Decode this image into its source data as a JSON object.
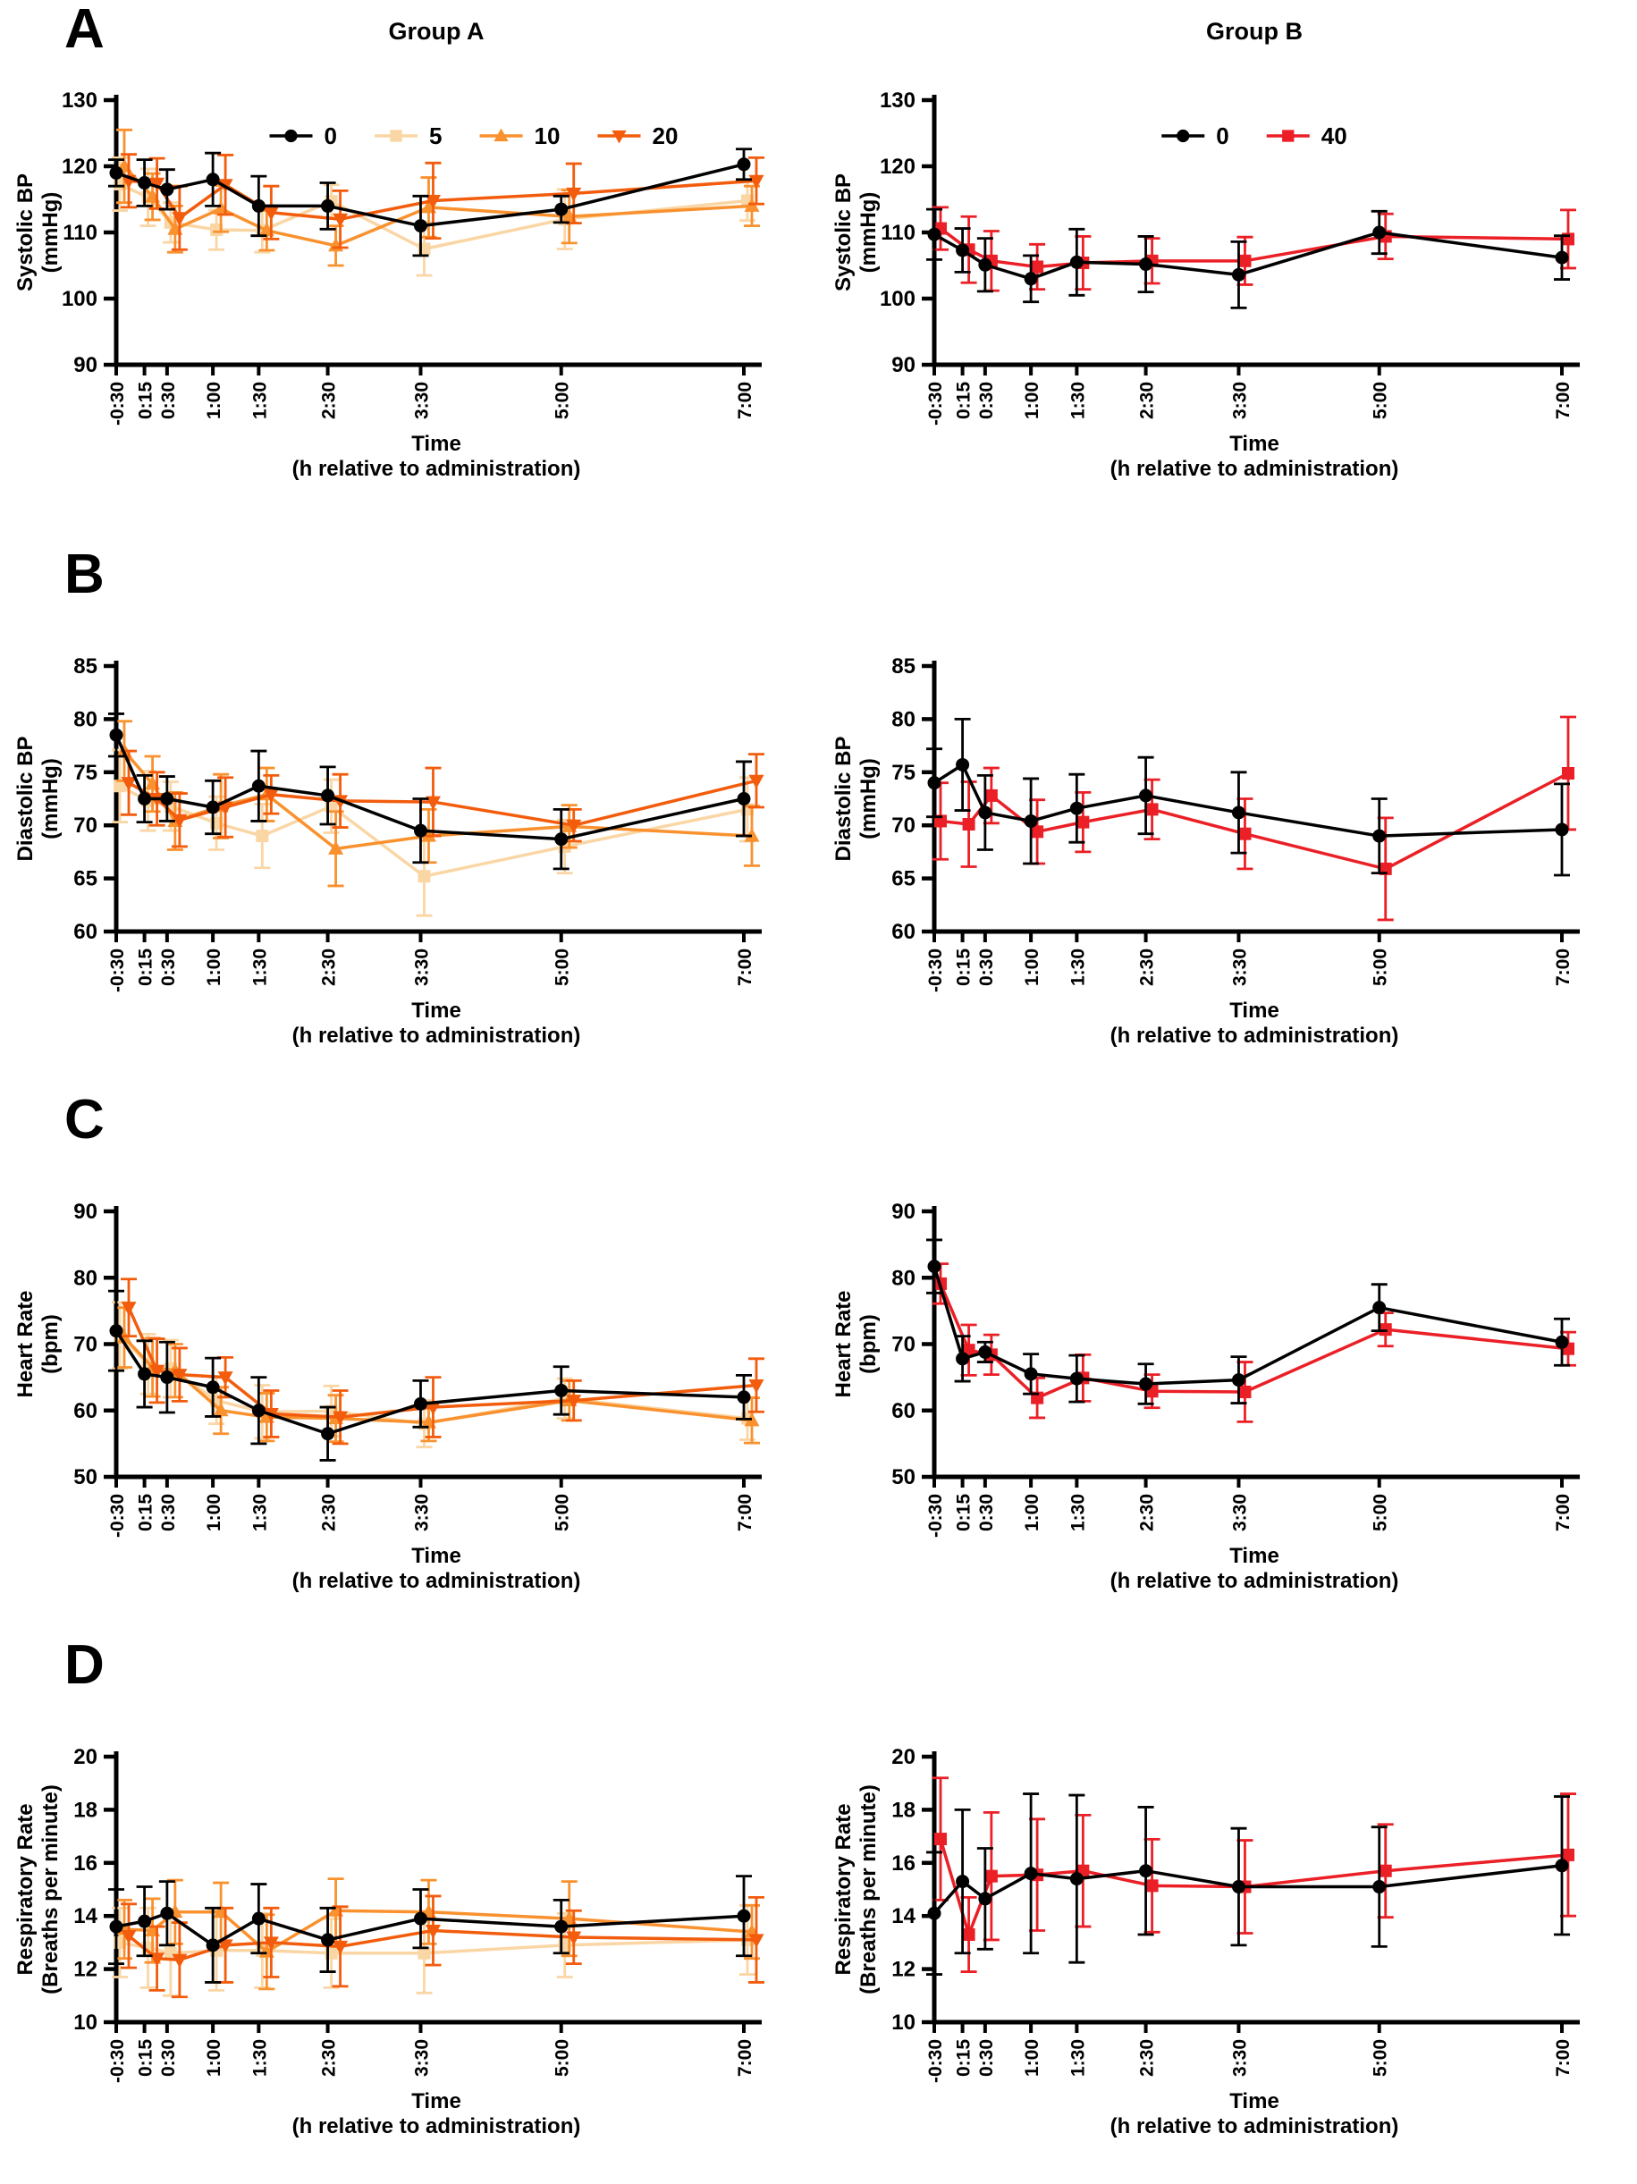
{
  "figure": {
    "columns": [
      {
        "title": "Group A"
      },
      {
        "title": "Group B"
      }
    ],
    "x_axis": {
      "label_lines": [
        "Time",
        "(h relative to administration)"
      ],
      "tick_labels": [
        "-0:30",
        "0:15",
        "0:30",
        "1:00",
        "1:30",
        "2:30",
        "3:30",
        "5:00",
        "7:00"
      ],
      "hours": [
        -0.5,
        0.25,
        0.5,
        1,
        1.5,
        2.5,
        3.5,
        5,
        7
      ],
      "fractions": [
        0,
        0.045,
        0.081,
        0.154,
        0.227,
        0.337,
        0.485,
        0.709,
        1.0
      ]
    },
    "rows": [
      {
        "letter": "A",
        "ylabel_lines": [
          "Systolic BP",
          "(mmHg)"
        ],
        "ymin": 90,
        "ymax": 130,
        "yticks": [
          90,
          100,
          110,
          120,
          130
        ]
      },
      {
        "letter": "B",
        "ylabel_lines": [
          "Diastolic BP",
          "(mmHg)"
        ],
        "ymin": 60,
        "ymax": 85,
        "yticks": [
          60,
          65,
          70,
          75,
          80,
          85
        ]
      },
      {
        "letter": "C",
        "ylabel_lines": [
          "Heart Rate",
          "(bpm)"
        ],
        "ymin": 50,
        "ymax": 90,
        "yticks": [
          50,
          60,
          70,
          80,
          90
        ]
      },
      {
        "letter": "D",
        "ylabel_lines": [
          "Respiratory Rate",
          "(Breaths per minute)"
        ],
        "ymin": 10,
        "ymax": 20,
        "yticks": [
          10,
          12,
          14,
          16,
          18,
          20
        ]
      }
    ],
    "styles": {
      "0": {
        "color": "#000000",
        "marker": "circle"
      },
      "5": {
        "color": "#FAD6A5",
        "marker": "square"
      },
      "10": {
        "color": "#F9912E",
        "marker": "triangle-up"
      },
      "20": {
        "color": "#F25C0C",
        "marker": "triangle-down"
      },
      "40": {
        "color": "#EB1F26",
        "marker": "square"
      }
    }
  },
  "chart_data": [
    {
      "id": "systolic-group-a",
      "type": "line",
      "row": "A",
      "title": "Group A",
      "ylabel": "Systolic BP (mmHg)",
      "legend": [
        "0",
        "5",
        "10",
        "20"
      ],
      "series": [
        {
          "key": "5",
          "values": [
            117.3,
            115.3,
            111.5,
            110.4,
            110.3,
            114.7,
            107.5,
            112,
            114.8
          ],
          "err": [
            4,
            4.3,
            3,
            3,
            3.3,
            2.5,
            4,
            4.5,
            3
          ]
        },
        {
          "key": "10",
          "values": [
            120,
            115.4,
            110.5,
            113.6,
            110.3,
            108,
            113.8,
            112.4,
            114
          ],
          "err": [
            5.5,
            3.5,
            3.5,
            3.5,
            3,
            3,
            4.5,
            4,
            3
          ]
        },
        {
          "key": "20",
          "values": [
            117.8,
            117.4,
            112.2,
            117.2,
            113,
            112,
            114.8,
            115.9,
            117.8
          ],
          "err": [
            4,
            3.8,
            4.8,
            4.5,
            4,
            4.3,
            5.7,
            4.5,
            3.5
          ]
        },
        {
          "key": "0",
          "values": [
            119,
            117.5,
            116.5,
            118,
            114,
            114,
            111,
            113.5,
            120.3
          ],
          "err": [
            2,
            3.5,
            3,
            4,
            4.5,
            3.5,
            4.5,
            2,
            2.3
          ]
        }
      ]
    },
    {
      "id": "systolic-group-b",
      "type": "line",
      "row": "A",
      "title": "Group B",
      "ylabel": "Systolic BP (mmHg)",
      "legend": [
        "0",
        "40"
      ],
      "series": [
        {
          "key": "40",
          "values": [
            110.6,
            107.4,
            105.7,
            104.8,
            105.4,
            105.7,
            105.7,
            109.4,
            109
          ],
          "err": [
            3.2,
            5,
            4.5,
            3.4,
            4,
            3.4,
            3.6,
            3.4,
            4.4
          ]
        },
        {
          "key": "0",
          "values": [
            109.7,
            107.3,
            105.1,
            103,
            105.5,
            105.2,
            103.6,
            110,
            106.2
          ],
          "err": [
            3.8,
            3.3,
            4,
            3.5,
            5,
            4.2,
            5,
            3.2,
            3.3
          ]
        }
      ]
    },
    {
      "id": "diastolic-group-a",
      "type": "line",
      "row": "B",
      "title": "",
      "ylabel": "Diastolic BP (mmHg)",
      "legend": [],
      "series": [
        {
          "key": "5",
          "values": [
            73.7,
            72.3,
            71.8,
            70.2,
            69,
            71.8,
            65.2,
            68,
            71.5
          ],
          "err": [
            3.4,
            2.8,
            2.3,
            2.5,
            3,
            2.5,
            3.7,
            2.5,
            3
          ]
        },
        {
          "key": "10",
          "values": [
            77,
            73.9,
            70.4,
            71.8,
            72.9,
            67.8,
            69,
            69.9,
            69
          ],
          "err": [
            2.8,
            2.6,
            2.7,
            3,
            2.5,
            3.5,
            2.5,
            2,
            2.8
          ]
        },
        {
          "key": "20",
          "values": [
            74,
            72.5,
            70.5,
            71.7,
            72.9,
            72.3,
            72.2,
            70,
            74.2
          ],
          "err": [
            3,
            2.5,
            2.5,
            2.8,
            1.8,
            2.5,
            3.2,
            1.5,
            2.5
          ]
        },
        {
          "key": "0",
          "values": [
            78.5,
            72.5,
            72.5,
            71.7,
            73.7,
            72.8,
            69.5,
            68.7,
            72.5
          ],
          "err": [
            2,
            2.2,
            2.1,
            2.5,
            3.3,
            2.7,
            3,
            2.8,
            3.5
          ]
        }
      ]
    },
    {
      "id": "diastolic-group-b",
      "type": "line",
      "row": "B",
      "title": "",
      "ylabel": "Diastolic BP (mmHg)",
      "legend": [],
      "series": [
        {
          "key": "40",
          "values": [
            70.4,
            70.1,
            72.8,
            69.4,
            70.3,
            71.5,
            69.2,
            65.9,
            74.9
          ],
          "err": [
            3.6,
            4,
            2.6,
            3,
            2.8,
            2.8,
            3.3,
            4.8,
            5.3
          ]
        },
        {
          "key": "0",
          "values": [
            74,
            75.7,
            71.2,
            70.4,
            71.6,
            72.8,
            71.2,
            69,
            69.6
          ],
          "err": [
            3.2,
            4.3,
            3.5,
            4,
            3.2,
            3.6,
            3.8,
            3.5,
            4.3
          ]
        }
      ]
    },
    {
      "id": "heart-rate-group-a",
      "type": "line",
      "row": "C",
      "title": "",
      "ylabel": "Heart Rate (bpm)",
      "legend": [],
      "series": [
        {
          "key": "5",
          "values": [
            71.3,
            67,
            66.3,
            61.5,
            59.8,
            59.9,
            58,
            61.8,
            58.8
          ],
          "err": [
            5,
            4.5,
            4.3,
            3.5,
            4,
            3.8,
            3.5,
            3,
            3.2
          ]
        },
        {
          "key": "10",
          "values": [
            71,
            66.5,
            66,
            60,
            59,
            58.8,
            58.2,
            61.5,
            58.5
          ],
          "err": [
            4.5,
            4.4,
            4,
            3.5,
            3.6,
            3.5,
            2.8,
            3,
            3.4
          ]
        },
        {
          "key": "20",
          "values": [
            75.5,
            66,
            65.4,
            65,
            59.5,
            59,
            60.5,
            61.5,
            63.8
          ],
          "err": [
            4.3,
            4.8,
            4,
            3,
            3.5,
            4,
            4.5,
            3,
            4
          ]
        },
        {
          "key": "0",
          "values": [
            72,
            65.5,
            65,
            63.5,
            60,
            56.5,
            61,
            63,
            62
          ],
          "err": [
            6,
            5,
            5.3,
            4.4,
            5,
            4,
            3.5,
            3.6,
            3.3
          ]
        }
      ]
    },
    {
      "id": "heart-rate-group-b",
      "type": "line",
      "row": "C",
      "title": "",
      "ylabel": "Heart Rate (bpm)",
      "legend": [],
      "series": [
        {
          "key": "40",
          "values": [
            79.1,
            69.1,
            68.4,
            61.9,
            64.9,
            62.9,
            62.8,
            72.2,
            69.3
          ],
          "err": [
            3,
            3.8,
            3,
            3,
            3.5,
            2.5,
            4.5,
            2.5,
            2.5
          ]
        },
        {
          "key": "0",
          "values": [
            81.7,
            67.8,
            68.8,
            65.5,
            64.8,
            64,
            64.6,
            75.5,
            70.3
          ],
          "err": [
            4,
            3.4,
            1.5,
            3,
            3.5,
            3,
            3.5,
            3.5,
            3.5
          ]
        }
      ]
    },
    {
      "id": "respiratory-rate-group-a",
      "type": "line",
      "row": "D",
      "title": "",
      "ylabel": "Respiratory Rate (Breaths per minute)",
      "legend": [],
      "series": [
        {
          "key": "5",
          "values": [
            13,
            12.8,
            12.6,
            12.7,
            12.7,
            12.6,
            12.6,
            12.9,
            13.1
          ],
          "err": [
            1.3,
            1.5,
            1.6,
            1.5,
            1.4,
            1.3,
            1.5,
            1.2,
            1.3
          ]
        },
        {
          "key": "10",
          "values": [
            13.5,
            13.45,
            14.15,
            14.15,
            12.65,
            14.2,
            14.15,
            13.9,
            13.4
          ],
          "err": [
            1.1,
            1.2,
            1.2,
            1.1,
            1.4,
            1.2,
            1.2,
            1.4,
            1
          ]
        },
        {
          "key": "20",
          "values": [
            13.25,
            12.4,
            12.35,
            12.9,
            13,
            12.85,
            13.45,
            13.2,
            13.1
          ],
          "err": [
            1.2,
            1.2,
            1.4,
            1.4,
            1.3,
            1.5,
            1.3,
            1,
            1.6
          ]
        },
        {
          "key": "0",
          "values": [
            13.6,
            13.8,
            14.1,
            12.9,
            13.9,
            13.1,
            13.9,
            13.6,
            14
          ],
          "err": [
            1.4,
            1.3,
            1.2,
            1.4,
            1.3,
            1.2,
            1.1,
            1,
            1.5
          ]
        }
      ]
    },
    {
      "id": "respiratory-rate-group-b",
      "type": "line",
      "row": "D",
      "title": "",
      "ylabel": "Respiratory Rate (Breaths per minute)",
      "legend": [],
      "series": [
        {
          "key": "40",
          "values": [
            16.9,
            13.3,
            15.5,
            15.55,
            15.7,
            15.14,
            15.1,
            15.7,
            16.3
          ],
          "err": [
            2.3,
            1.4,
            2.4,
            2.1,
            2.1,
            1.75,
            1.75,
            1.75,
            2.3
          ]
        },
        {
          "key": "0",
          "values": [
            14.1,
            15.3,
            14.65,
            15.6,
            15.4,
            15.7,
            15.1,
            15.1,
            15.9
          ],
          "err": [
            2.3,
            2.7,
            1.9,
            3,
            3.15,
            2.4,
            2.2,
            2.25,
            2.6
          ]
        }
      ]
    }
  ]
}
